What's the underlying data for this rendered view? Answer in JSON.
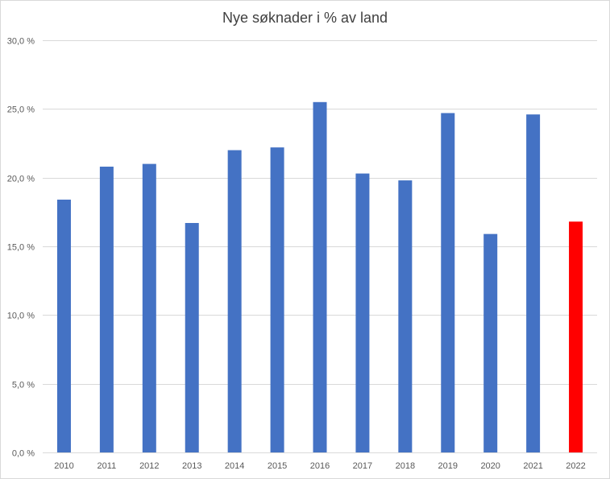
{
  "chart_data": {
    "type": "bar",
    "title": "Nye søknader i % av land",
    "xlabel": "",
    "ylabel": "",
    "categories": [
      "2010",
      "2011",
      "2012",
      "2013",
      "2014",
      "2015",
      "2016",
      "2017",
      "2018",
      "2019",
      "2020",
      "2021",
      "2022"
    ],
    "values": [
      18.4,
      20.8,
      21.0,
      16.7,
      22.0,
      22.2,
      25.5,
      20.3,
      19.8,
      24.7,
      15.9,
      24.6,
      16.8
    ],
    "ylim": [
      0,
      30
    ],
    "yticks": [
      "0,0 %",
      "5,0 %",
      "10,0 %",
      "15,0 %",
      "20,0 %",
      "25,0 %",
      "30,0 %"
    ],
    "grid": true,
    "legend": "none",
    "colors": {
      "bar": "#4472c4",
      "highlight": "#ff0000",
      "highlight_index": 12,
      "grid": "#d9d9d9"
    }
  }
}
